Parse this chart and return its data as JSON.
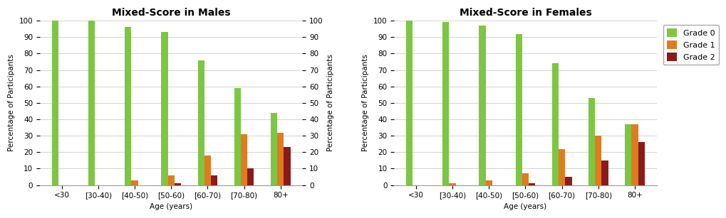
{
  "males": {
    "title": "Mixed-Score in Males",
    "categories": [
      "<30",
      "[30-40)",
      "[40-50)",
      "[50-60)",
      "[60-70)",
      "[70-80)",
      "80+"
    ],
    "grade0": [
      100,
      100,
      96,
      93,
      76,
      59,
      44
    ],
    "grade1": [
      0,
      0,
      3,
      6,
      18,
      31,
      32
    ],
    "grade2": [
      0,
      0,
      0,
      1,
      6,
      10,
      23
    ]
  },
  "females": {
    "title": "Mixed-Score in Females",
    "categories": [
      "<30",
      "[30-40)",
      "[40-50)",
      "[50-60)",
      "[60-70)",
      "[70-80)",
      "80+"
    ],
    "grade0": [
      100,
      99,
      97,
      92,
      74,
      53,
      37
    ],
    "grade1": [
      0,
      1,
      3,
      7,
      22,
      30,
      37
    ],
    "grade2": [
      0,
      0,
      0,
      1,
      5,
      15,
      26
    ]
  },
  "colors": {
    "grade0": "#7DC642",
    "grade1": "#E07B20",
    "grade2": "#8B1A1A"
  },
  "legend_labels": [
    "Grade 0",
    "Grade 1",
    "Grade 2"
  ],
  "ylabel": "Percentage of Participants",
  "xlabel": "Age (years)",
  "ylim": [
    0,
    100
  ],
  "yticks": [
    0,
    10,
    20,
    30,
    40,
    50,
    60,
    70,
    80,
    90,
    100
  ],
  "bar_width": 0.18,
  "title_fontsize": 10,
  "axis_fontsize": 7.5,
  "tick_fontsize": 7.5,
  "legend_fontsize": 8,
  "background_color": "#ffffff"
}
